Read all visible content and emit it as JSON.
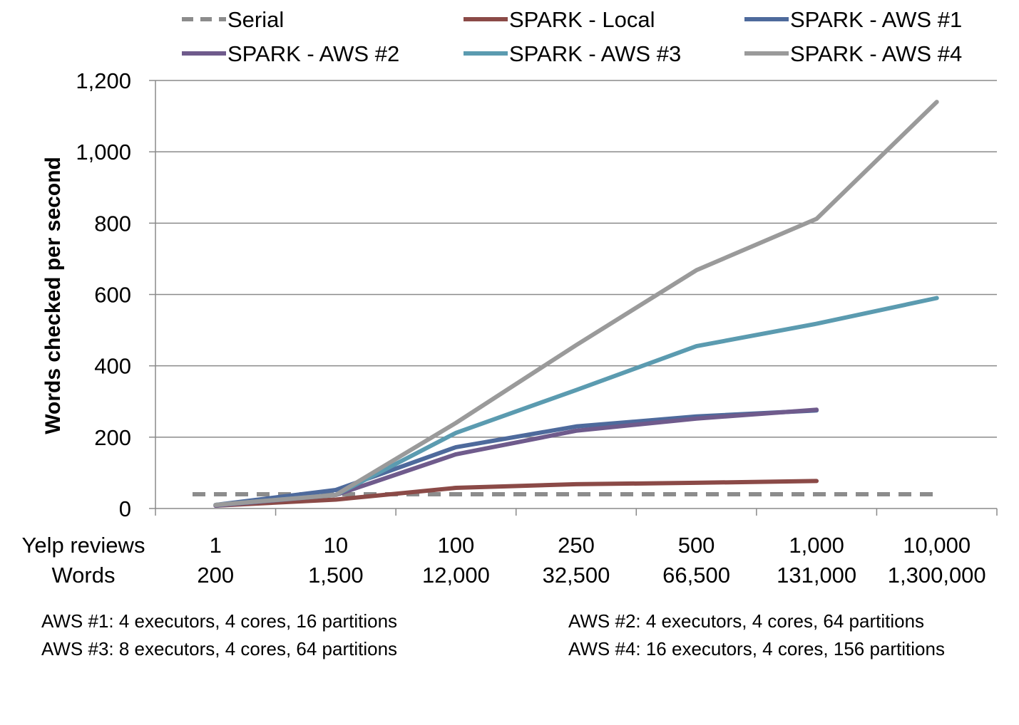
{
  "chart_data": {
    "type": "line",
    "title": "",
    "ylabel": "Words checked per second",
    "xlabel": "",
    "ylim": [
      0,
      1200
    ],
    "yticks": [
      0,
      200,
      400,
      600,
      800,
      1000,
      1200
    ],
    "ytick_labels": [
      "0",
      "200",
      "400",
      "600",
      "800",
      "1,000",
      "1,200"
    ],
    "grid": true,
    "legend_position": "top",
    "category_rows": [
      {
        "label": "Yelp reviews",
        "values": [
          "1",
          "10",
          "100",
          "250",
          "500",
          "1,000",
          "10,000"
        ]
      },
      {
        "label": "Words",
        "values": [
          "200",
          "1,500",
          "12,000",
          "32,500",
          "66,500",
          "131,000",
          "1,300,000"
        ]
      }
    ],
    "series": [
      {
        "name": "Serial",
        "color": "#8c8c8c",
        "dashed": true,
        "values": [
          40,
          40,
          40,
          40,
          40,
          40,
          40
        ]
      },
      {
        "name": "SPARK - Local",
        "color": "#8b4a47",
        "dashed": false,
        "values": [
          8,
          25,
          58,
          68,
          72,
          77,
          null
        ]
      },
      {
        "name": "SPARK - AWS #1",
        "color": "#4e6a9c",
        "dashed": false,
        "values": [
          10,
          52,
          172,
          230,
          258,
          275,
          null
        ]
      },
      {
        "name": "SPARK - AWS #2",
        "color": "#6f5b8c",
        "dashed": false,
        "values": [
          8,
          38,
          152,
          218,
          252,
          277,
          null
        ]
      },
      {
        "name": "SPARK - AWS #3",
        "color": "#5b9bb0",
        "dashed": false,
        "values": [
          10,
          38,
          212,
          332,
          455,
          518,
          590
        ]
      },
      {
        "name": "SPARK - AWS #4",
        "color": "#9a9a9a",
        "dashed": false,
        "values": [
          10,
          38,
          240,
          458,
          668,
          812,
          1140
        ]
      }
    ]
  },
  "notes": [
    "AWS #1: 4 executors, 4 cores, 16 partitions",
    "AWS #2: 4 executors, 4 cores, 64 partitions",
    "AWS #3: 8 executors, 4 cores, 64 partitions",
    "AWS #4: 16 executors, 4 cores, 156 partitions"
  ]
}
